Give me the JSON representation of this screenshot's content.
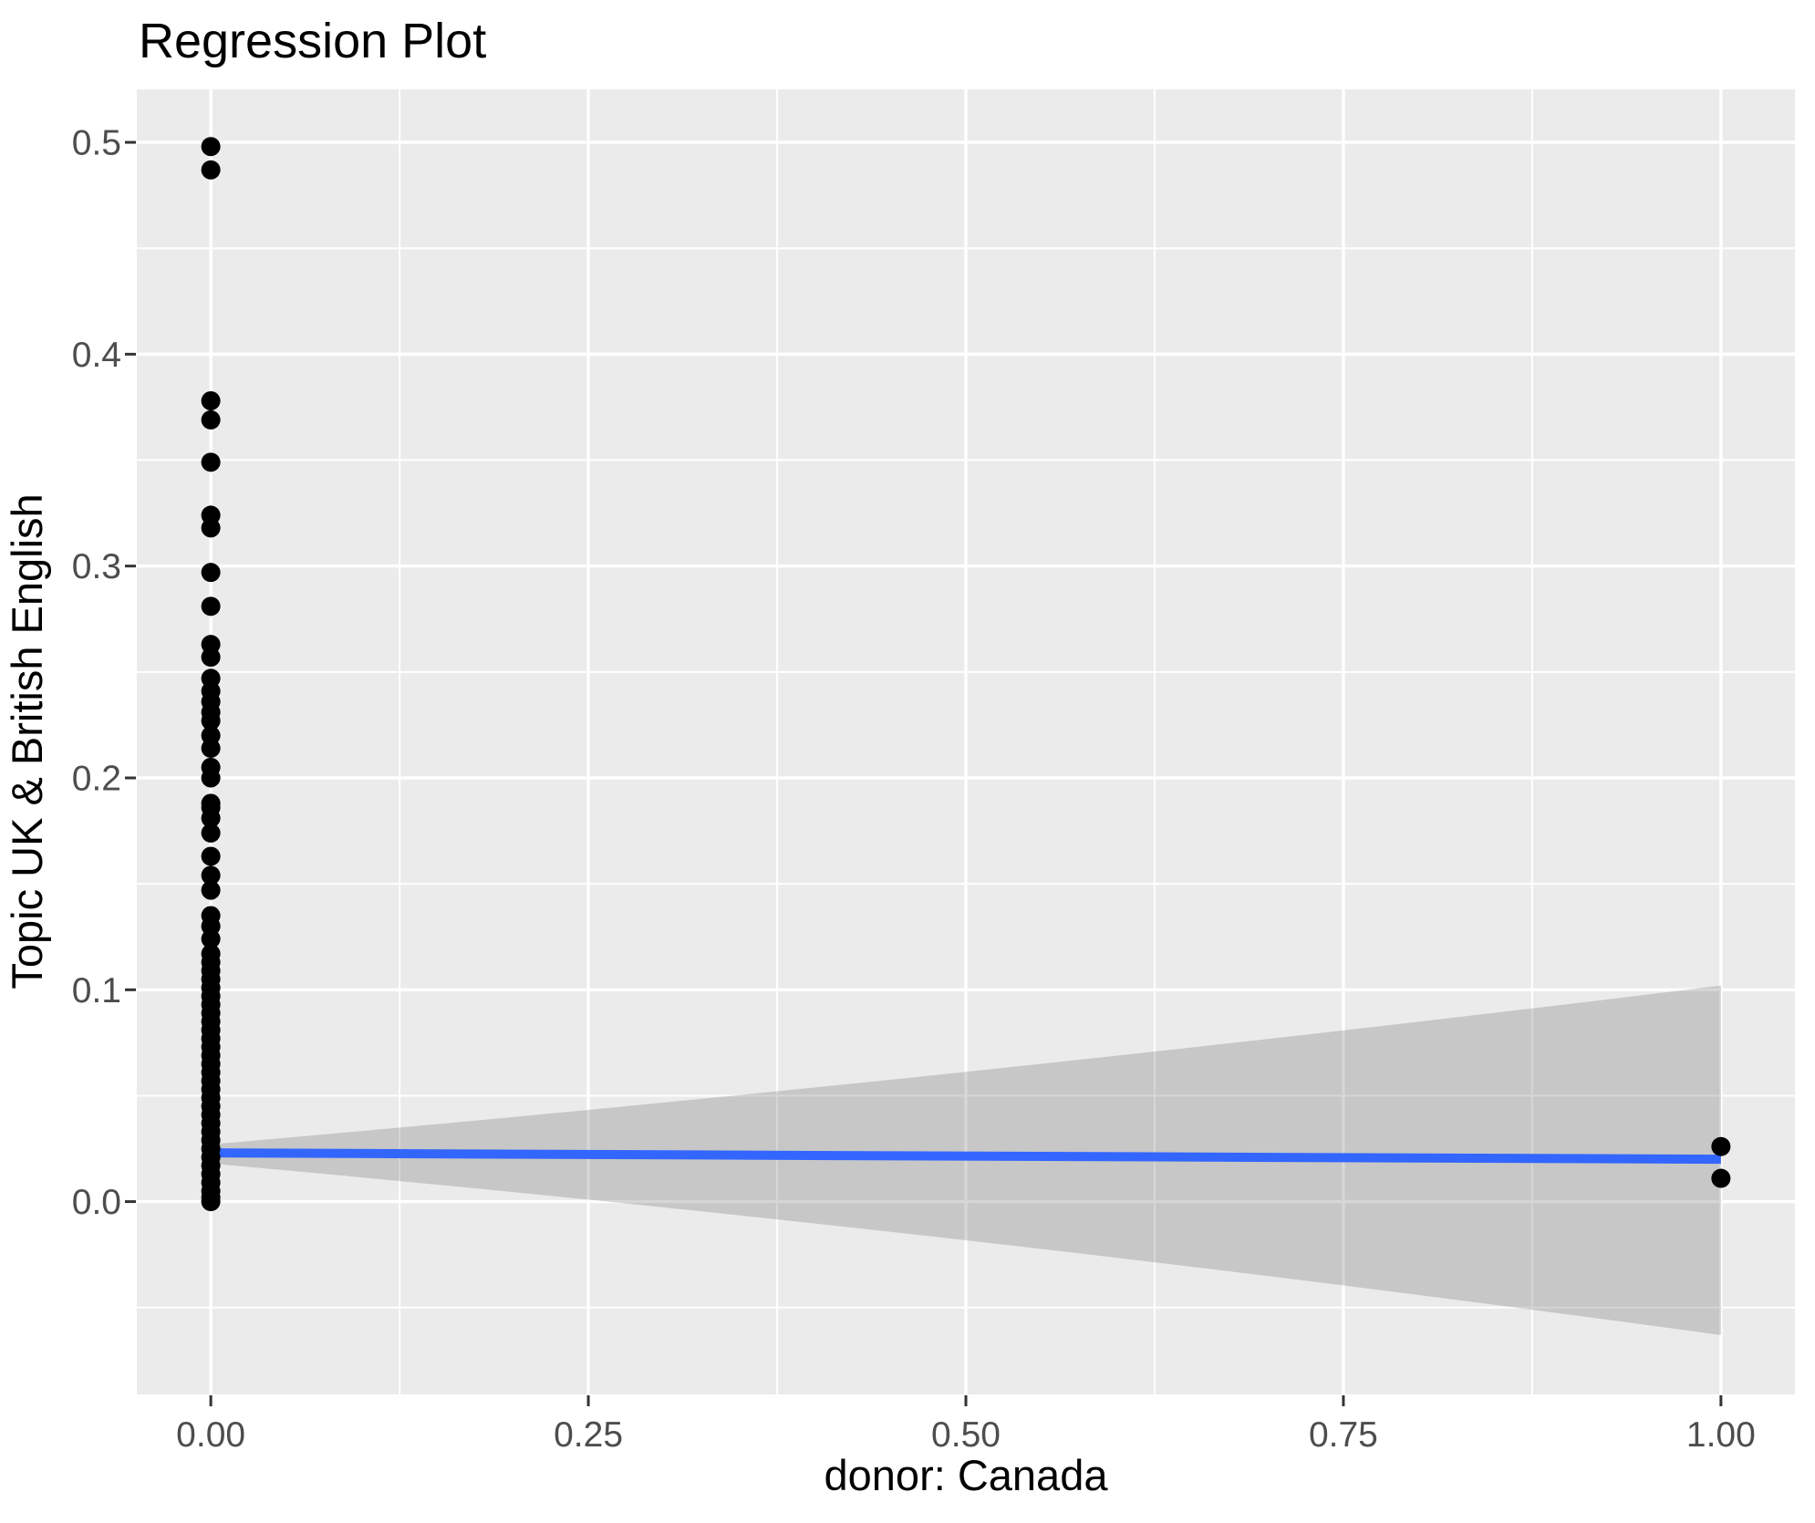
{
  "title": "Regression Plot",
  "axes": {
    "x": {
      "title": "donor: Canada",
      "tick_labels": [
        "0.00",
        "0.25",
        "0.50",
        "0.75",
        "1.00"
      ]
    },
    "y": {
      "title": "Topic UK & British English",
      "tick_labels": [
        "0.0",
        "0.1",
        "0.2",
        "0.3",
        "0.4",
        "0.5"
      ]
    }
  },
  "colors": {
    "background": "#FFFFFF",
    "panel_background": "#EBEBEB",
    "gridline": "#FFFFFF",
    "tick_mark": "#333333",
    "tick_label": "#4D4D4D",
    "point": "#000000",
    "smooth_line": "#3366FF",
    "confidence_band": "rgba(102,102,102,0.27)"
  },
  "chart_data": {
    "type": "scatter",
    "title": "Regression Plot",
    "xlabel": "donor: Canada",
    "ylabel": "Topic UK & British English",
    "xlim": [
      -0.049,
      1.049
    ],
    "ylim": [
      -0.091,
      0.525
    ],
    "grid": "on",
    "legend": "none",
    "x_major_ticks": [
      0,
      0.25,
      0.5,
      0.75,
      1.0
    ],
    "x_tick_labels": [
      "0.00",
      "0.25",
      "0.50",
      "0.75",
      "1.00"
    ],
    "x_minor_ticks": [
      0.125,
      0.375,
      0.625,
      0.875
    ],
    "y_major_ticks": [
      0,
      0.1,
      0.2,
      0.3,
      0.4,
      0.5
    ],
    "y_tick_labels": [
      "0.0",
      "0.1",
      "0.2",
      "0.3",
      "0.4",
      "0.5"
    ],
    "y_minor_ticks": [
      -0.05,
      0.05,
      0.15,
      0.25,
      0.35,
      0.45
    ],
    "points": {
      "x0": [
        0.498,
        0.487,
        0.378,
        0.369,
        0.349,
        0.324,
        0.318,
        0.297,
        0.281,
        0.263,
        0.257,
        0.247,
        0.241,
        0.236,
        0.231,
        0.227,
        0.22,
        0.214,
        0.205,
        0.2,
        0.188,
        0.186,
        0.181,
        0.174,
        0.163,
        0.154,
        0.147,
        0.135,
        0.13,
        0.124,
        0.117,
        0.113,
        0.109,
        0.105,
        0.101,
        0.097,
        0.093,
        0.089,
        0.085,
        0.081,
        0.077,
        0.073,
        0.069,
        0.065,
        0.061,
        0.057,
        0.053,
        0.049,
        0.045,
        0.041,
        0.037,
        0.033,
        0.029,
        0.025,
        0.021,
        0.017,
        0.013,
        0.009,
        0.005,
        0.002,
        0.0
      ],
      "x1": [
        0.026,
        0.011
      ]
    },
    "smooth": {
      "line": {
        "x": [
          0,
          1
        ],
        "y": [
          0.023,
          0.02
        ],
        "color": "#3366FF"
      },
      "band": {
        "top": {
          "start": 0.027,
          "control": [
            0.5,
            0.058
          ],
          "end": 0.102
        },
        "bottom": {
          "start": 0.018,
          "control": [
            0.5,
            -0.014
          ],
          "end": -0.063
        }
      }
    }
  }
}
